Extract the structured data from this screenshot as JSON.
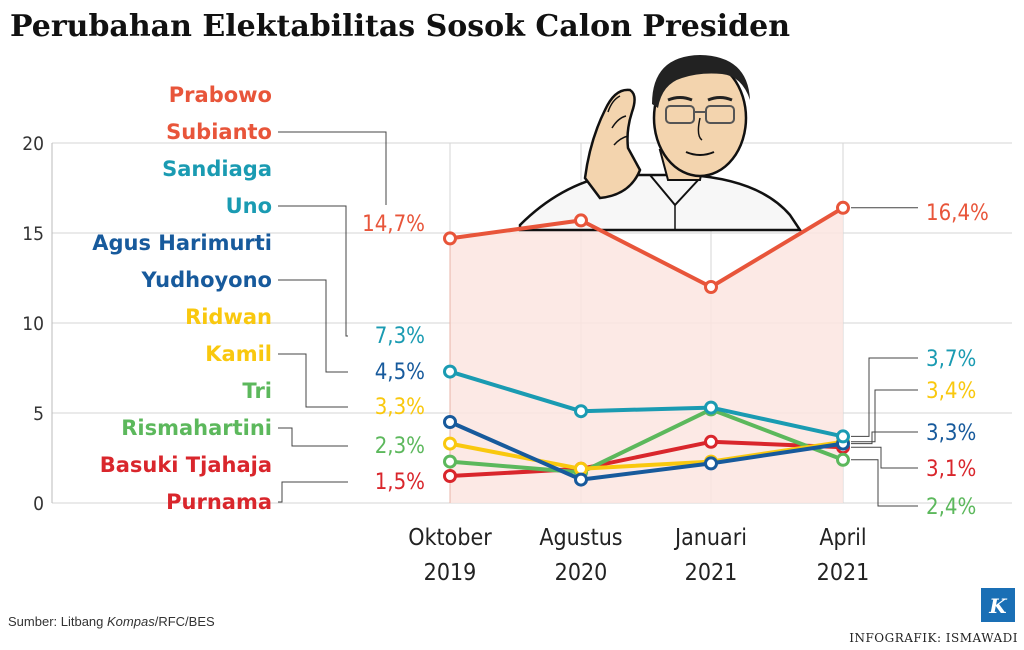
{
  "title": "Perubahan Elektabilitas Sosok Calon Presiden",
  "source": {
    "prefix": "Sumber: Litbang ",
    "italic": "Kompas",
    "suffix": "/RFC/BES"
  },
  "credit": "INFOGRAFIK: ISMAWADI",
  "logo_letter": "K",
  "chart_data": {
    "type": "line",
    "title": "Perubahan Elektabilitas Sosok Calon Presiden",
    "xlabel": "",
    "ylabel": "",
    "ylim": [
      0,
      20
    ],
    "yticks": [
      0,
      5,
      10,
      15,
      20
    ],
    "grid": true,
    "categories": [
      [
        "Oktober",
        "2019"
      ],
      [
        "Agustus",
        "2020"
      ],
      [
        "Januari",
        "2021"
      ],
      [
        "April",
        "2021"
      ]
    ],
    "series": [
      {
        "name": [
          "Prabowo",
          "Subianto"
        ],
        "color": "#e8553a",
        "values": [
          14.7,
          15.7,
          12.0,
          16.4
        ],
        "first_label": "14,7%",
        "last_label": "16,4%"
      },
      {
        "name": [
          "Sandiaga",
          "Uno"
        ],
        "color": "#1a9bb2",
        "values": [
          7.3,
          5.1,
          5.3,
          3.7
        ],
        "first_label": "7,3%",
        "last_label": "3,7%"
      },
      {
        "name": [
          "Agus Harimurti",
          "Yudhoyono"
        ],
        "color": "#175a9c",
        "values": [
          4.5,
          1.3,
          2.2,
          3.3
        ],
        "first_label": "4,5%",
        "last_label": "3,3%"
      },
      {
        "name": [
          "Ridwan",
          "Kamil"
        ],
        "color": "#f9c80e",
        "values": [
          3.3,
          1.9,
          2.3,
          3.4
        ],
        "first_label": "3,3%",
        "last_label": "3,4%"
      },
      {
        "name": [
          "Tri",
          "Rismahartini"
        ],
        "color": "#5cb85c",
        "values": [
          2.3,
          1.7,
          5.2,
          2.4
        ],
        "first_label": "2,3%",
        "last_label": "2,4%"
      },
      {
        "name": [
          "Basuki Tjahaja",
          "Purnama"
        ],
        "color": "#d9262c",
        "values": [
          1.5,
          1.9,
          3.4,
          3.1
        ],
        "first_label": "1,5%",
        "last_label": "3,1%"
      }
    ]
  }
}
